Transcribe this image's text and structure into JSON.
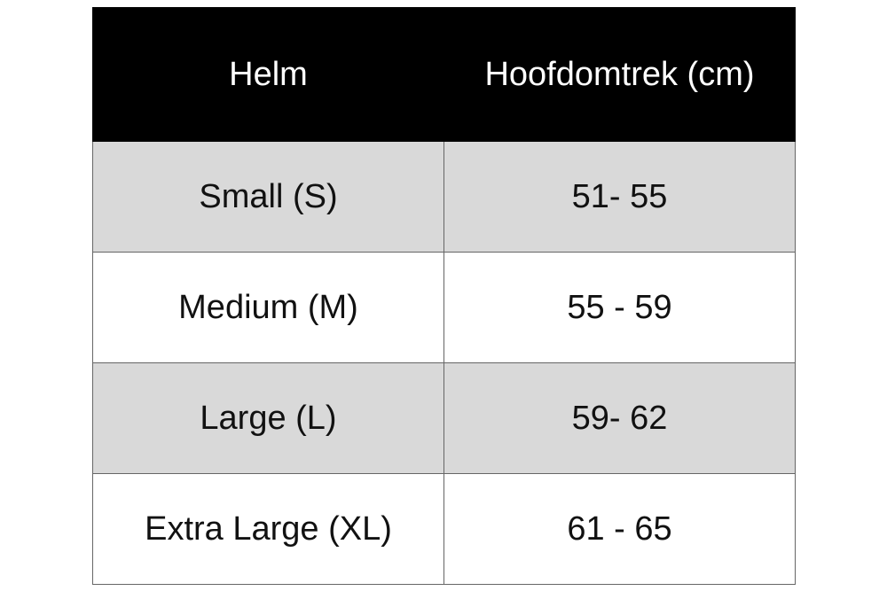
{
  "table": {
    "headers": [
      "Helm",
      "Hoofdomtrek (cm)"
    ],
    "rows": [
      [
        "Small (S)",
        "51- 55"
      ],
      [
        "Medium (M)",
        "55 - 59"
      ],
      [
        "Large (L)",
        "59- 62"
      ],
      [
        "Extra Large (XL)",
        "61 - 65"
      ]
    ],
    "colors": {
      "header_bg": "#000000",
      "shaded_row_bg": "#d9d9d9",
      "border": "#666666"
    }
  }
}
